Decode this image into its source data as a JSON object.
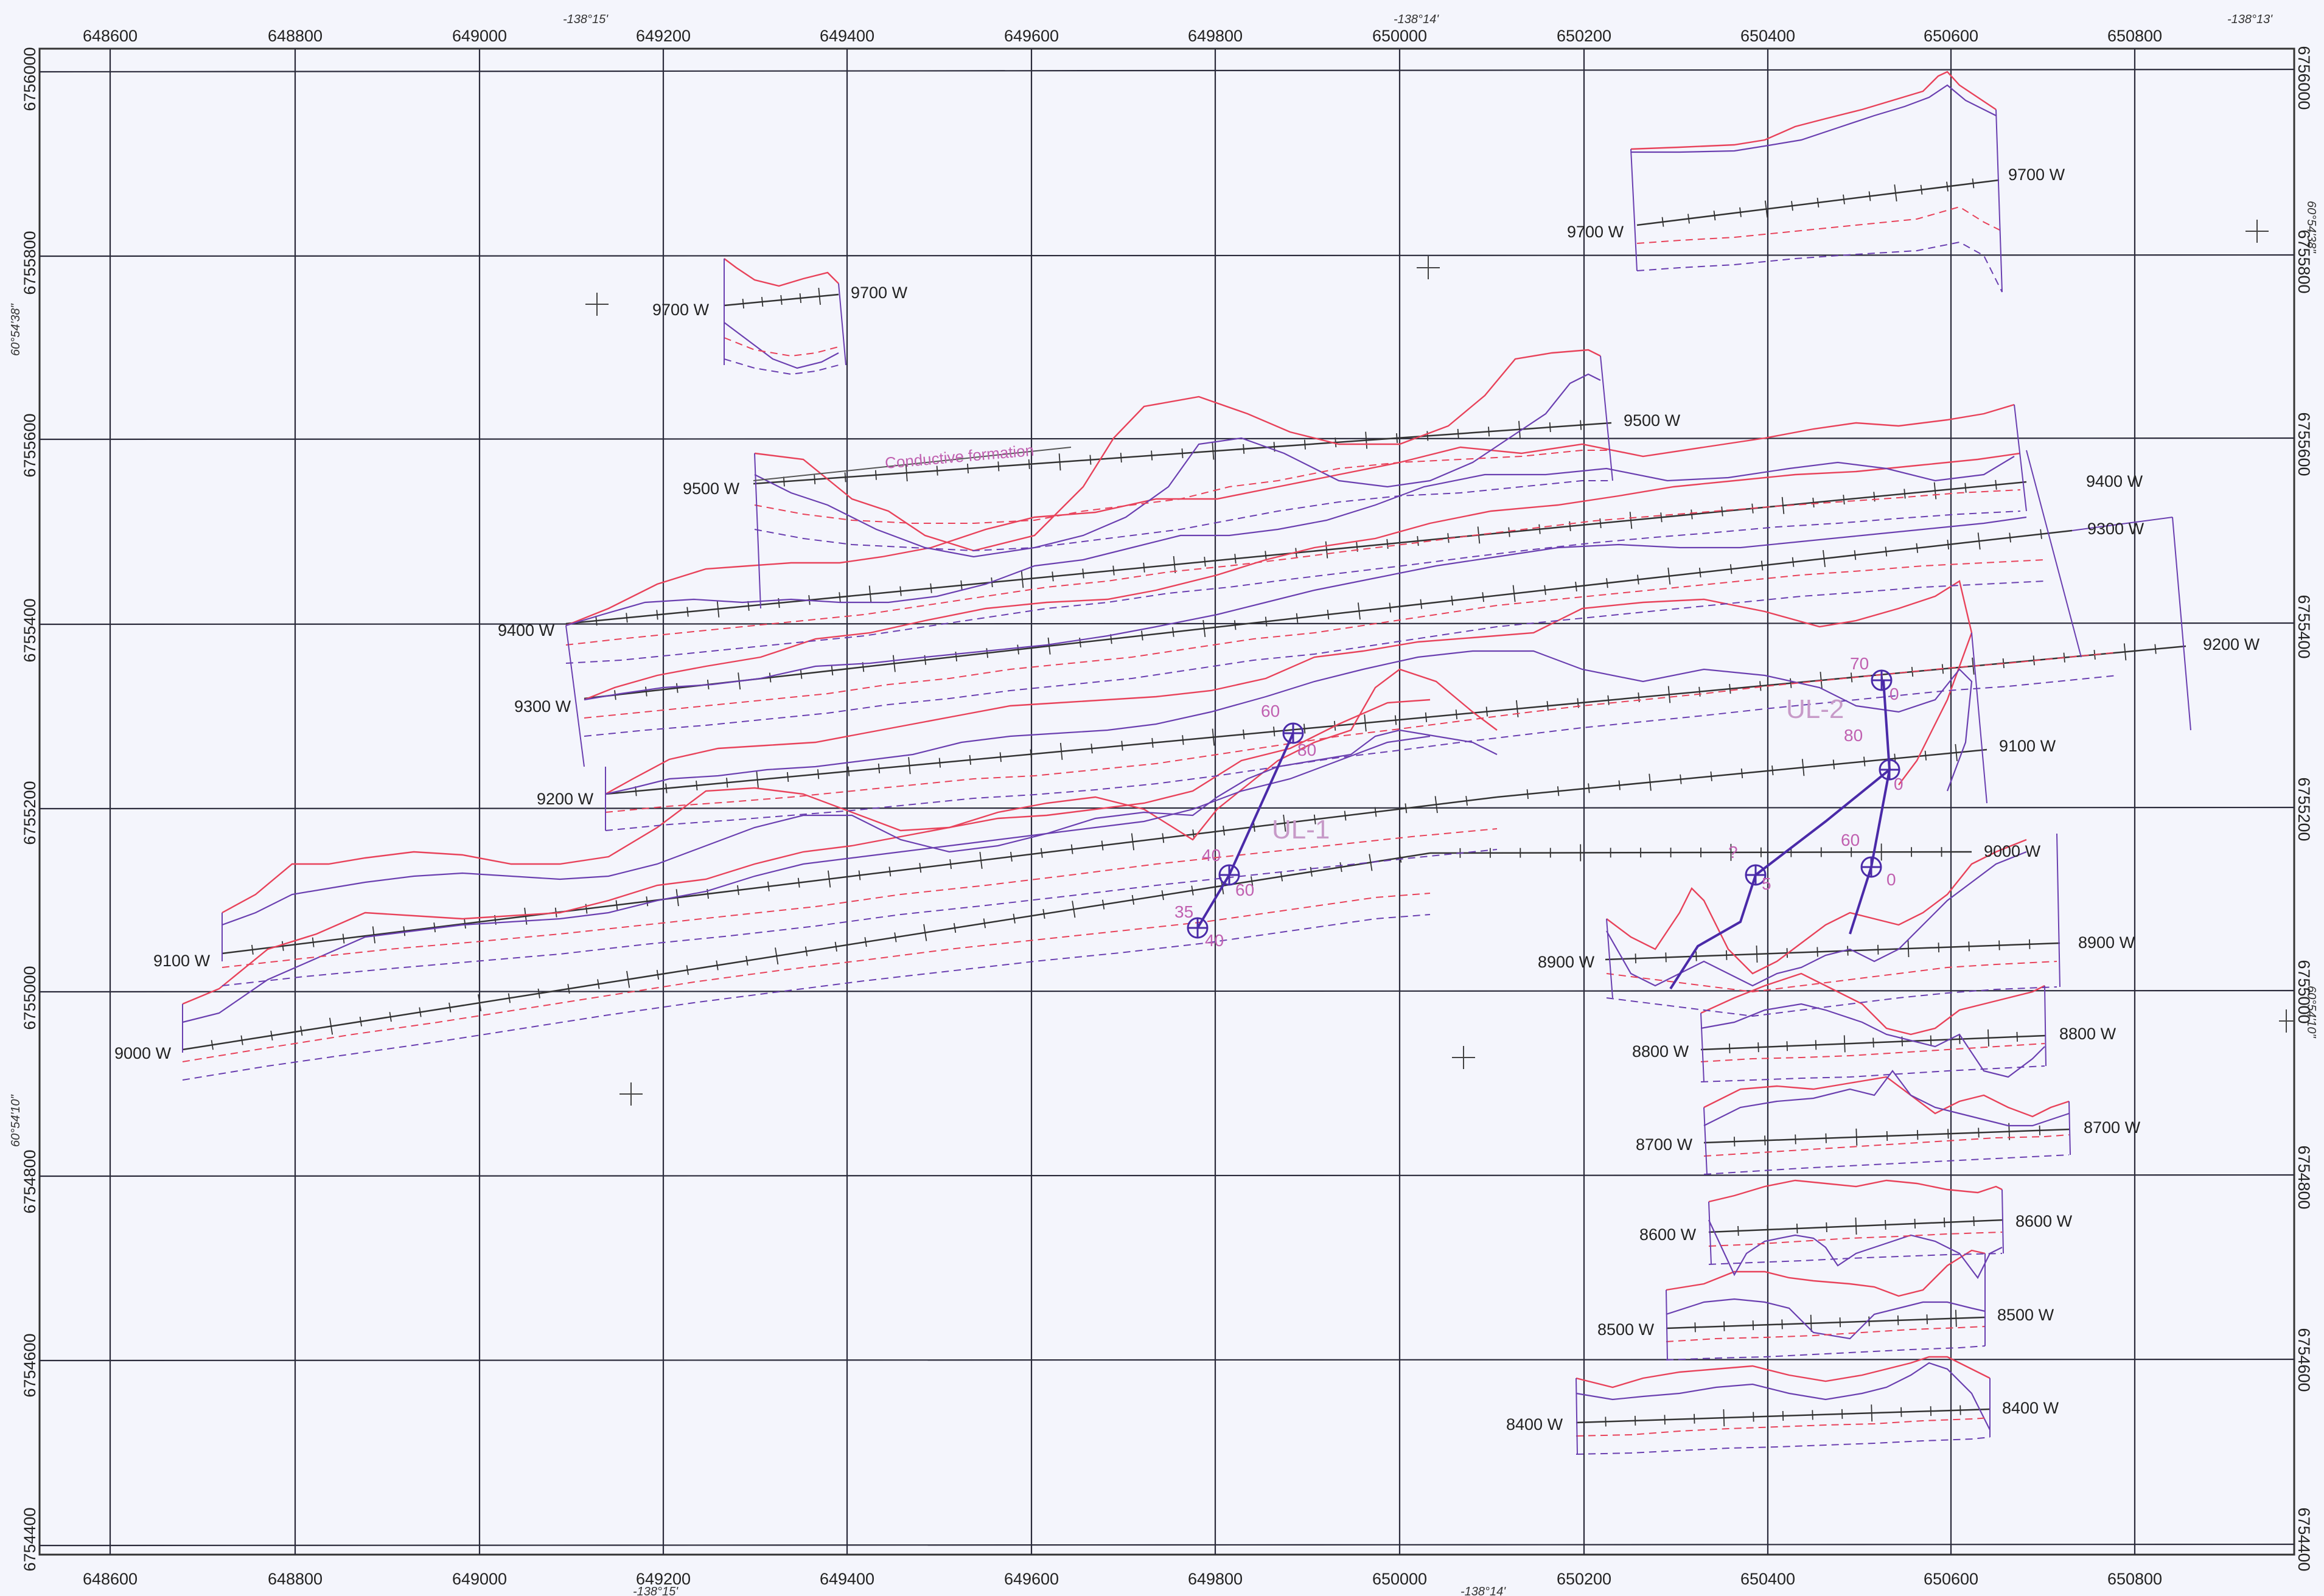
{
  "map": {
    "grid_x_labels": [
      "648600",
      "648800",
      "649000",
      "649200",
      "649400",
      "649600",
      "649800",
      "650000",
      "650200",
      "650400",
      "650600",
      "650800"
    ],
    "grid_y_labels": [
      "6756000",
      "6755800",
      "6755600",
      "6755400",
      "6755200",
      "6755000",
      "6754800",
      "6754600",
      "6754400"
    ],
    "geo_top_labels": [
      "-138°15'",
      "-138°14'",
      "-138°13'"
    ],
    "geo_bottom_labels": [
      "-138°15'",
      "-138°14'"
    ],
    "geo_left_labels": [
      "60°54'38\"",
      "60°54'10\""
    ],
    "geo_right_labels": [
      "60°54'38\"",
      "60°54'10\""
    ],
    "line_labels": {
      "l9700_small_left": "9700 W",
      "l9700_small_right": "9700 W",
      "l9700_right_left": "9700 W",
      "l9700_right_right": "9700 W",
      "l9500_left": "9500 W",
      "l9500_right": "9500 W",
      "l9400_left": "9400 W",
      "l9400_right": "9400 W",
      "l9300_left": "9300 W",
      "l9300_right": "9300 W",
      "l9200_left": "9200 W",
      "l9200_right": "9200 W",
      "l9100_left": "9100 W",
      "l9100_right": "9100 W",
      "l9000_left": "9000 W",
      "l9000_right": "9000 W",
      "l8900_left": "8900 W",
      "l8900_right": "8900 W",
      "l8800_left": "8800 W",
      "l8800_right": "8800 W",
      "l8700_left": "8700 W",
      "l8700_right": "8700 W",
      "l8600_left": "8600 W",
      "l8600_right": "8600 W",
      "l8500_left": "8500 W",
      "l8500_right": "8500 W",
      "l8400_left": "8400 W",
      "l8400_right": "8400 W"
    },
    "annotations": {
      "conductive": "Conductive formation",
      "ul1": "UL-1",
      "ul2": "UL-2",
      "dip60a": "60",
      "dip80a": "80",
      "dip40": "40",
      "dip60b": "60",
      "dip35": "35",
      "dip40b": "40",
      "dip70": "70",
      "dip0a": "0",
      "dip80b": "80",
      "dip0b": "0",
      "dip60c": "60",
      "dip0c": "0",
      "dipq": "?",
      "dip5": "5"
    },
    "colors": {
      "grid": "#2a2a3a",
      "profile_red": "#e8425a",
      "profile_purple": "#6a3fb0",
      "conductor": "#4a2aa8",
      "annotation": "#c060b0"
    }
  }
}
